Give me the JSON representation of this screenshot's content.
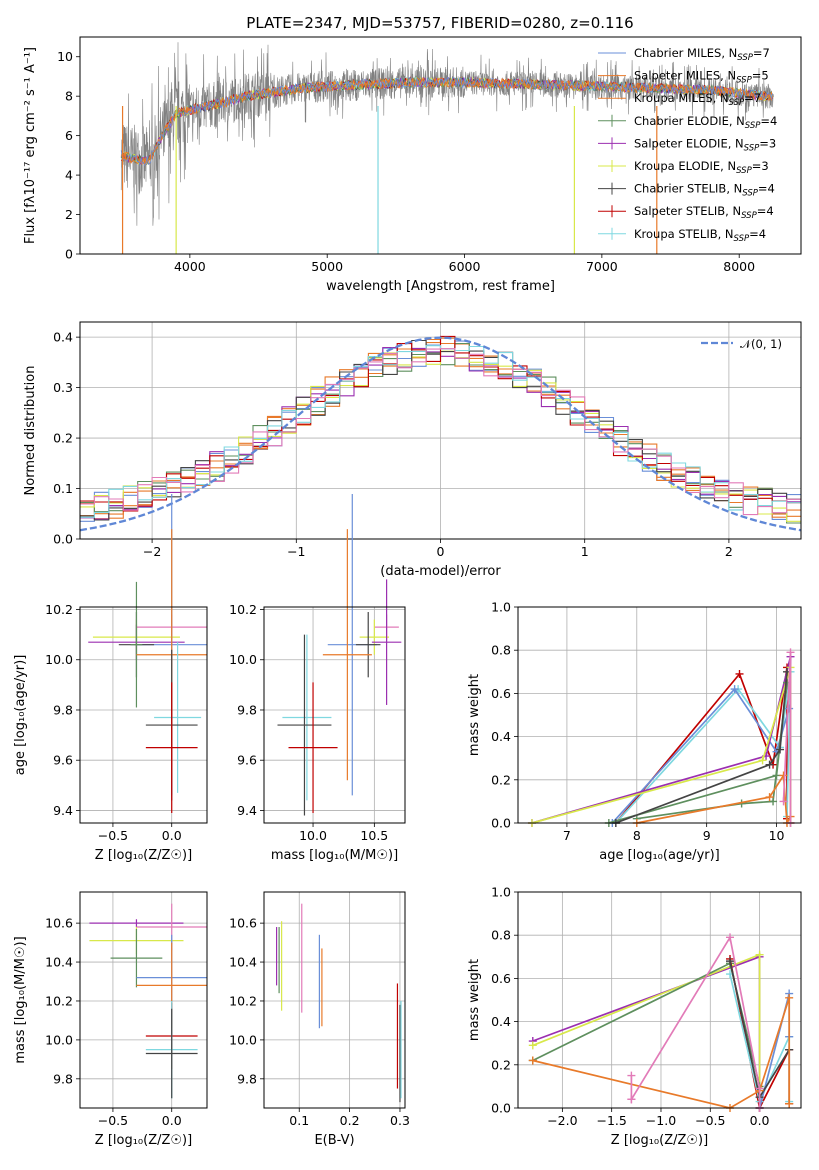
{
  "colors": {
    "chabrier_miles": "#6a8fd8",
    "salpeter_miles": "#e8792a",
    "kroupa_miles": "#e87a2a",
    "chabrier_elodie": "#5e8f5e",
    "salpeter_elodie": "#9b2fb0",
    "kroupa_elodie": "#d8e84a",
    "chabrier_stelib": "#444444",
    "salpeter_stelib": "#c00000",
    "kroupa_stelib": "#7fd8e0",
    "pink": "#e27bb8",
    "data": "#808080",
    "normal": "#5f87d6"
  },
  "chart_data": [
    {
      "id": "spectrum",
      "type": "line",
      "title": "PLATE=2347, MJD=53757, FIBERID=0280, z=0.116",
      "xlabel": "wavelength [Angstrom, rest frame]",
      "ylabel": "Flux [fλ10⁻¹⁷ erg cm⁻² s⁻¹ A⁻¹]",
      "xlim": [
        3200,
        8450
      ],
      "ylim": [
        0,
        11
      ],
      "xticks": [
        "4000",
        "5000",
        "6000",
        "7000",
        "8000"
      ],
      "yticks": [
        "0",
        "2",
        "4",
        "6",
        "8",
        "10"
      ],
      "continuum": {
        "x": [
          3500,
          3600,
          3700,
          3800,
          3900,
          4000,
          4200,
          4400,
          4600,
          4800,
          5000,
          5300,
          5600,
          6000,
          6500,
          7000,
          7400,
          7800,
          8200
        ],
        "y": [
          5.0,
          4.8,
          4.7,
          6.0,
          7.1,
          7.3,
          7.6,
          8.0,
          8.2,
          8.4,
          8.5,
          8.6,
          8.7,
          8.7,
          8.6,
          8.5,
          8.4,
          8.3,
          8.0
        ]
      },
      "legend": [
        "Chabrier MILES, N_SSP=7",
        "Salpeter MILES, N_SSP=5",
        "Kroupa MILES, N_SSP=7",
        "Chabrier ELODIE, N_SSP=4",
        "Salpeter ELODIE, N_SSP=3",
        "Kroupa ELODIE, N_SSP=3",
        "Chabrier STELIB, N_SSP=4",
        "Salpeter STELIB, N_SSP=4",
        "Kroupa STELIB, N_SSP=4"
      ],
      "legend_placement": "upper-right"
    },
    {
      "id": "residuals",
      "type": "histogram",
      "xlabel": "(data-model)/error",
      "ylabel": "Normed distribution",
      "xlim": [
        -2.5,
        2.5
      ],
      "ylim": [
        0,
        0.43
      ],
      "xticks": [
        "−2",
        "−1",
        "0",
        "1",
        "2"
      ],
      "yticks": [
        "0.0",
        "0.1",
        "0.2",
        "0.3",
        "0.4"
      ],
      "bin_width": 0.1,
      "bins_left": [
        -2.5,
        -2.4,
        -2.3,
        -2.2,
        -2.1,
        -2.0,
        -1.9,
        -1.8,
        -1.7,
        -1.6,
        -1.5,
        -1.4,
        -1.3,
        -1.2,
        -1.1,
        -1.0,
        -0.9,
        -0.8,
        -0.7,
        -0.6,
        -0.5,
        -0.4,
        -0.3,
        -0.2,
        -0.1,
        0.0,
        0.1,
        0.2,
        0.3,
        0.4,
        0.5,
        0.6,
        0.7,
        0.8,
        0.9,
        1.0,
        1.1,
        1.2,
        1.3,
        1.4,
        1.5,
        1.6,
        1.7,
        1.8,
        1.9,
        2.0,
        2.1,
        2.2,
        2.3,
        2.4
      ],
      "reference_label": "𝒩(0, 1)",
      "legend_placement": "upper-right"
    },
    {
      "id": "age-vs-z",
      "type": "errorbar",
      "xlabel": "Z [log₁₀(Z/Z☉)]",
      "ylabel": "age  [log₁₀(age/yr)]",
      "xlim": [
        -0.78,
        0.3
      ],
      "ylim": [
        9.35,
        10.21
      ],
      "xticks": [
        "−0.5",
        "0.0"
      ],
      "yticks": [
        "9.4",
        "9.6",
        "9.8",
        "10.0",
        "10.2"
      ],
      "points": [
        {
          "x": 0.0,
          "y": 10.13,
          "xerr": 0.3,
          "yerr": 0.05,
          "c": "pink"
        },
        {
          "x": -0.3,
          "y": 10.09,
          "xerr": 0.37,
          "yerr": 0.07,
          "c": "kroupa_elodie"
        },
        {
          "x": -0.3,
          "y": 10.07,
          "xerr": 0.41,
          "yerr": 0.07,
          "c": "salpeter_elodie"
        },
        {
          "x": 0.0,
          "y": 10.06,
          "xerr": 0.3,
          "yerr": 0.6,
          "c": "chabrier_miles"
        },
        {
          "x": -0.3,
          "y": 10.06,
          "xerr": 0.15,
          "yerr": 0.13,
          "c": "chabrier_stelib"
        },
        {
          "x": -0.3,
          "y": 10.06,
          "xerr": 0.05,
          "yerr": 0.25,
          "c": "chabrier_elodie"
        },
        {
          "x": 0.0,
          "y": 10.02,
          "xerr": 0.3,
          "yerr": 0.5,
          "c": "kroupa_miles"
        },
        {
          "x": 0.05,
          "y": 9.77,
          "xerr": 0.2,
          "yerr": 0.3,
          "c": "kroupa_stelib"
        },
        {
          "x": 0.0,
          "y": 9.74,
          "xerr": 0.22,
          "yerr": 0.3,
          "c": "chabrier_stelib"
        },
        {
          "x": 0.0,
          "y": 9.65,
          "xerr": 0.22,
          "yerr": 0.26,
          "c": "salpeter_stelib"
        }
      ]
    },
    {
      "id": "age-vs-mass",
      "type": "errorbar",
      "xlabel": "mass [log₁₀(M/M☉)]",
      "ylabel": "",
      "xlim": [
        9.6,
        10.75
      ],
      "ylim": [
        9.35,
        10.21
      ],
      "xticks": [
        "10.0",
        "10.5"
      ],
      "yticks": [
        "9.4",
        "9.6",
        "9.8",
        "10.0",
        "10.2"
      ],
      "points": [
        {
          "x": 10.6,
          "y": 10.13,
          "xerr": 0.1,
          "yerr": 0.05,
          "c": "pink"
        },
        {
          "x": 10.5,
          "y": 10.09,
          "xerr": 0.12,
          "yerr": 0.07,
          "c": "kroupa_elodie"
        },
        {
          "x": 10.6,
          "y": 10.07,
          "xerr": 0.12,
          "yerr": 0.25,
          "c": "salpeter_elodie"
        },
        {
          "x": 10.32,
          "y": 10.06,
          "xerr": 0.2,
          "yerr": 0.6,
          "c": "chabrier_miles"
        },
        {
          "x": 10.45,
          "y": 10.06,
          "xerr": 0.1,
          "yerr": 0.13,
          "c": "chabrier_stelib"
        },
        {
          "x": 10.28,
          "y": 10.02,
          "xerr": 0.2,
          "yerr": 0.5,
          "c": "kroupa_miles"
        },
        {
          "x": 9.95,
          "y": 9.77,
          "xerr": 0.2,
          "yerr": 0.33,
          "c": "kroupa_stelib"
        },
        {
          "x": 9.93,
          "y": 9.74,
          "xerr": 0.22,
          "yerr": 0.36,
          "c": "chabrier_stelib"
        },
        {
          "x": 10.0,
          "y": 9.65,
          "xerr": 0.2,
          "yerr": 0.26,
          "c": "salpeter_stelib"
        }
      ]
    },
    {
      "id": "weight-vs-age",
      "type": "line",
      "xlabel": "age  [log₁₀(age/yr)]",
      "ylabel": "mass weight",
      "xlim": [
        6.3,
        10.35
      ],
      "ylim": [
        0,
        1.0
      ],
      "xticks": [
        "7",
        "8",
        "9",
        "10"
      ],
      "yticks": [
        "0.0",
        "0.2",
        "0.4",
        "0.6",
        "0.8",
        "1.0"
      ],
      "series": [
        {
          "c": "salpeter_stelib",
          "x": [
            7.7,
            9.47,
            9.95,
            10.15,
            10.15
          ],
          "y": [
            0.0,
            0.69,
            0.27,
            0.72,
            0.02
          ]
        },
        {
          "c": "kroupa_stelib",
          "x": [
            7.7,
            9.45,
            10.05,
            10.2,
            10.15
          ],
          "y": [
            0.0,
            0.62,
            0.35,
            0.7,
            0.03
          ]
        },
        {
          "c": "chabrier_miles",
          "x": [
            7.65,
            9.4,
            10.0,
            10.18
          ],
          "y": [
            0.0,
            0.62,
            0.33,
            0.53
          ]
        },
        {
          "c": "salpeter_elodie",
          "x": [
            6.5,
            9.85,
            10.2,
            10.2
          ],
          "y": [
            0.0,
            0.31,
            0.77,
            0.0
          ]
        },
        {
          "c": "kroupa_elodie",
          "x": [
            6.5,
            9.8,
            10.2,
            10.2
          ],
          "y": [
            0.0,
            0.29,
            0.72,
            0.0
          ]
        },
        {
          "c": "chabrier_elodie",
          "x": [
            7.6,
            10.0,
            10.15,
            9.95,
            9.5,
            8.0
          ],
          "y": [
            0.0,
            0.22,
            0.65,
            0.1,
            0.09,
            0.02
          ]
        },
        {
          "c": "chabrier_stelib",
          "x": [
            7.7,
            9.9,
            10.05,
            10.15
          ],
          "y": [
            0.0,
            0.27,
            0.34,
            0.7
          ]
        },
        {
          "c": "kroupa_miles",
          "x": [
            8.0,
            9.9,
            10.1,
            10.15,
            10.2
          ],
          "y": [
            0.0,
            0.12,
            0.22,
            0.0,
            0.03
          ]
        },
        {
          "c": "pink",
          "x": [
            10.1,
            10.2,
            10.2
          ],
          "y": [
            0.1,
            0.79,
            0.0
          ]
        }
      ]
    },
    {
      "id": "mass-vs-z",
      "type": "errorbar",
      "xlabel": "Z [log₁₀(Z/Z☉)]",
      "ylabel": "mass [log₁₀(M/M☉)]",
      "xlim": [
        -0.78,
        0.3
      ],
      "ylim": [
        9.65,
        10.76
      ],
      "xticks": [
        "−0.5",
        "0.0"
      ],
      "yticks": [
        "9.8",
        "10.0",
        "10.2",
        "10.4",
        "10.6"
      ],
      "points": [
        {
          "x": -0.3,
          "y": 10.6,
          "xerr": 0.4,
          "yerr": 0.02,
          "c": "salpeter_elodie"
        },
        {
          "x": 0.0,
          "y": 10.58,
          "xerr": 0.3,
          "yerr": 0.12,
          "c": "pink"
        },
        {
          "x": -0.3,
          "y": 10.51,
          "xerr": 0.4,
          "yerr": 0.07,
          "c": "kroupa_elodie"
        },
        {
          "x": -0.3,
          "y": 10.42,
          "xerr": 0.22,
          "yerr": 0.15,
          "c": "chabrier_elodie"
        },
        {
          "x": 0.0,
          "y": 10.32,
          "xerr": 0.3,
          "yerr": 0.22,
          "c": "chabrier_miles"
        },
        {
          "x": 0.0,
          "y": 10.28,
          "xerr": 0.3,
          "yerr": 0.22,
          "c": "kroupa_miles"
        },
        {
          "x": 0.0,
          "y": 10.02,
          "xerr": 0.22,
          "yerr": 0.17,
          "c": "salpeter_stelib"
        },
        {
          "x": 0.0,
          "y": 9.95,
          "xerr": 0.22,
          "yerr": 0.25,
          "c": "kroupa_stelib"
        },
        {
          "x": 0.0,
          "y": 9.93,
          "xerr": 0.22,
          "yerr": 0.23,
          "c": "chabrier_stelib"
        }
      ]
    },
    {
      "id": "mass-vs-ebv",
      "type": "errorbar",
      "xlabel": "E(B-V)",
      "ylabel": "",
      "xlim": [
        0.03,
        0.31
      ],
      "ylim": [
        9.65,
        10.76
      ],
      "xticks": [
        "0.1",
        "0.2",
        "0.3"
      ],
      "yticks": [
        "9.8",
        "10.0",
        "10.2",
        "10.4",
        "10.6"
      ],
      "points": [
        {
          "x": 0.06,
          "y": 10.41,
          "xerr": 0,
          "yerr": 0.17,
          "c": "chabrier_elodie"
        },
        {
          "x": 0.065,
          "y": 10.38,
          "xerr": 0,
          "yerr": 0.23,
          "c": "kroupa_elodie"
        },
        {
          "x": 0.055,
          "y": 10.43,
          "xerr": 0,
          "yerr": 0.15,
          "c": "salpeter_elodie"
        },
        {
          "x": 0.105,
          "y": 10.42,
          "xerr": 0,
          "yerr": 0.28,
          "c": "pink"
        },
        {
          "x": 0.14,
          "y": 10.3,
          "xerr": 0,
          "yerr": 0.24,
          "c": "chabrier_miles"
        },
        {
          "x": 0.145,
          "y": 10.27,
          "xerr": 0,
          "yerr": 0.2,
          "c": "kroupa_miles"
        },
        {
          "x": 0.295,
          "y": 10.02,
          "xerr": 0,
          "yerr": 0.27,
          "c": "salpeter_stelib"
        },
        {
          "x": 0.3,
          "y": 9.93,
          "xerr": 0,
          "yerr": 0.25,
          "c": "chabrier_stelib"
        },
        {
          "x": 0.302,
          "y": 9.95,
          "xerr": 0,
          "yerr": 0.25,
          "c": "kroupa_stelib"
        }
      ]
    },
    {
      "id": "weight-vs-z",
      "type": "line",
      "xlabel": "Z [log₁₀(Z/Z☉)]",
      "ylabel": "mass weight",
      "xlim": [
        -2.45,
        0.42
      ],
      "ylim": [
        0,
        1.0
      ],
      "xticks": [
        "−2.0",
        "−1.5",
        "−1.0",
        "−0.5",
        "0.0"
      ],
      "yticks": [
        "0.0",
        "0.2",
        "0.4",
        "0.6",
        "0.8",
        "1.0"
      ],
      "series": [
        {
          "c": "salpeter_elodie",
          "x": [
            -2.3,
            0.0,
            0.0
          ],
          "y": [
            0.31,
            0.7,
            0.0
          ]
        },
        {
          "c": "kroupa_elodie",
          "x": [
            -2.3,
            0.0,
            0.0
          ],
          "y": [
            0.29,
            0.71,
            0.0
          ]
        },
        {
          "c": "chabrier_elodie",
          "x": [
            -2.3,
            -0.3,
            0.0,
            0.0
          ],
          "y": [
            0.22,
            0.67,
            0.1,
            0.09
          ]
        },
        {
          "c": "salpeter_stelib",
          "x": [
            -0.3,
            0.0,
            0.3,
            0.3
          ],
          "y": [
            0.69,
            0.0,
            0.27,
            0.02
          ]
        },
        {
          "c": "kroupa_stelib",
          "x": [
            -0.3,
            0.0,
            0.3,
            0.3
          ],
          "y": [
            0.62,
            0.03,
            0.33,
            0.03
          ]
        },
        {
          "c": "chabrier_miles",
          "x": [
            0.0,
            0.3,
            0.3
          ],
          "y": [
            0.0,
            0.53,
            0.33
          ]
        },
        {
          "c": "chabrier_stelib",
          "x": [
            -0.3,
            0.0,
            0.3
          ],
          "y": [
            0.68,
            0.05,
            0.27
          ]
        },
        {
          "c": "kroupa_miles",
          "x": [
            -2.3,
            -0.3,
            0.0,
            0.3,
            0.3
          ],
          "y": [
            0.22,
            0.0,
            0.08,
            0.51,
            0.02
          ]
        },
        {
          "c": "pink",
          "x": [
            -1.3,
            -0.3,
            0.0,
            0.0
          ],
          "y": [
            0.04,
            0.79,
            0.09,
            0.0
          ]
        },
        {
          "c": "pink",
          "x": [
            -1.3,
            -1.3
          ],
          "y": [
            0.15,
            0.04
          ]
        }
      ]
    }
  ]
}
